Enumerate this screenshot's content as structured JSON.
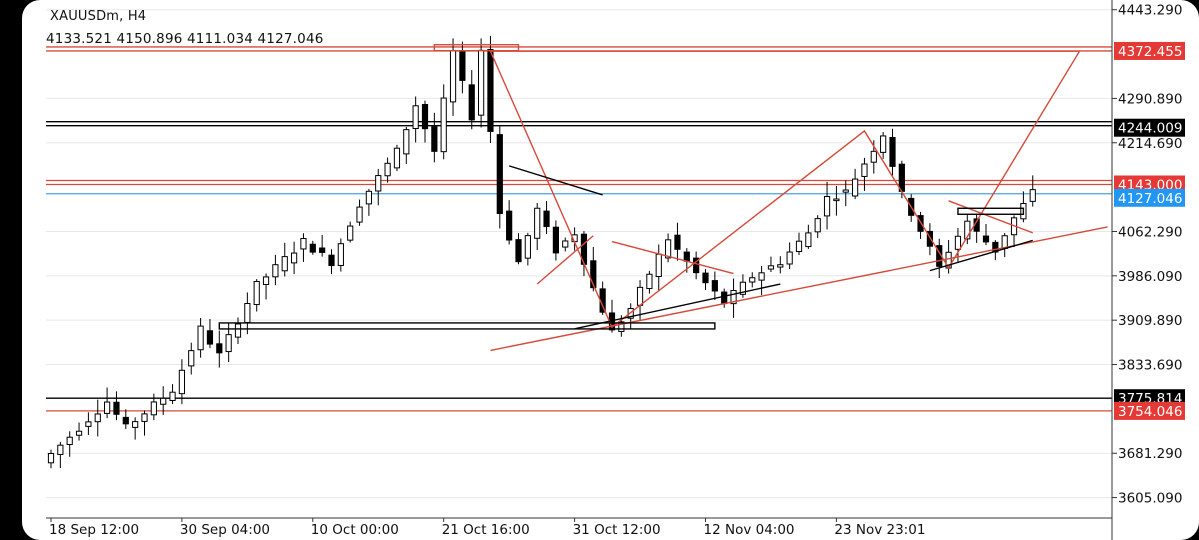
{
  "header": {
    "symbol": "XAUUSDm, H4",
    "ohlc": "4133.521 4150.896 4111.034 4127.046"
  },
  "colors": {
    "background": "#ffffff",
    "bezel": "#000000",
    "candles": "#000000",
    "grid": "#e8e8e8",
    "red_line": "#d64a3a",
    "black_line": "#000000",
    "blue_line": "#4aa3df",
    "price_label_red": "#e53935",
    "price_label_black": "#000000",
    "price_label_blue": "#2196f3"
  },
  "chart_data": {
    "type": "candlestick",
    "symbol": "XAUUSDm",
    "timeframe": "H4",
    "ylim": [
      3570,
      4460
    ],
    "y_ticks": [
      "4443.290",
      "4290.890",
      "4214.690",
      "4062.290",
      "3986.090",
      "3909.890",
      "3833.690",
      "3681.290",
      "3605.090"
    ],
    "x_ticks": [
      "18 Sep 12:00",
      "30 Sep 04:00",
      "10 Oct 00:00",
      "21 Oct 16:00",
      "31 Oct 12:00",
      "12 Nov 04:00",
      "23 Nov 23:01"
    ],
    "x_tick_positions": [
      0,
      14,
      28,
      42,
      56,
      70,
      84
    ],
    "bar_count": 106,
    "price_path": [
      [
        0,
        3665
      ],
      [
        7,
        3770
      ],
      [
        9,
        3725
      ],
      [
        14,
        3790
      ],
      [
        17,
        3895
      ],
      [
        19,
        3850
      ],
      [
        23,
        3970
      ],
      [
        28,
        4045
      ],
      [
        31,
        4010
      ],
      [
        34,
        4110
      ],
      [
        38,
        4200
      ],
      [
        40,
        4280
      ],
      [
        42,
        4200
      ],
      [
        44,
        4370
      ],
      [
        46,
        4260
      ],
      [
        47,
        4375
      ],
      [
        49,
        4095
      ],
      [
        51,
        4010
      ],
      [
        53,
        4100
      ],
      [
        55,
        4030
      ],
      [
        57,
        4060
      ],
      [
        59,
        3965
      ],
      [
        61,
        3890
      ],
      [
        63,
        3930
      ],
      [
        65,
        3990
      ],
      [
        67,
        4050
      ],
      [
        70,
        3990
      ],
      [
        73,
        3940
      ],
      [
        76,
        3985
      ],
      [
        79,
        4010
      ],
      [
        82,
        4060
      ],
      [
        84,
        4120
      ],
      [
        86,
        4130
      ],
      [
        88,
        4180
      ],
      [
        90,
        4230
      ],
      [
        92,
        4125
      ],
      [
        94,
        4065
      ],
      [
        96,
        4000
      ],
      [
        97,
        4030
      ],
      [
        99,
        4080
      ],
      [
        100,
        4060
      ],
      [
        102,
        4030
      ],
      [
        104,
        4085
      ],
      [
        106,
        4130
      ]
    ],
    "horizontal_levels": [
      {
        "price": 4372.455,
        "label": "4372.455",
        "color": "red",
        "double": true
      },
      {
        "price": 4244.009,
        "label": "4244.009",
        "color": "black",
        "double": true
      },
      {
        "price": 4143.0,
        "label": "4143.000",
        "color": "red",
        "double": true
      },
      {
        "price": 4127.046,
        "label": "4127.046",
        "color": "blue",
        "double": false
      },
      {
        "price": 3775.814,
        "label": "3775.814",
        "color": "black",
        "double": false
      },
      {
        "price": 3754.046,
        "label": "3754.046",
        "color": "red",
        "double": false
      }
    ],
    "price_labels": [
      "4372.455",
      "4244.009",
      "4143.000",
      "4127.046",
      "3775.814",
      "3754.046"
    ],
    "drawings": [
      {
        "kind": "zigzag",
        "color": "red",
        "points": [
          [
            47,
            4372
          ],
          [
            60,
            3898
          ],
          [
            87,
            4235
          ],
          [
            96,
            4000
          ],
          [
            110,
            4372
          ],
          [
            47,
            4372
          ]
        ]
      },
      {
        "kind": "line",
        "color": "red",
        "points": [
          [
            52,
            3972
          ],
          [
            58,
            4055
          ]
        ]
      },
      {
        "kind": "line",
        "color": "black",
        "points": [
          [
            49,
            4175
          ],
          [
            59,
            4125
          ]
        ]
      },
      {
        "kind": "line",
        "color": "red",
        "points": [
          [
            60,
            4045
          ],
          [
            73,
            3990
          ]
        ]
      },
      {
        "kind": "line",
        "color": "red",
        "points": [
          [
            47,
            3858
          ],
          [
            113,
            4070
          ]
        ]
      },
      {
        "kind": "line",
        "color": "black",
        "points": [
          [
            56,
            3895
          ],
          [
            78,
            3972
          ]
        ]
      },
      {
        "kind": "line",
        "color": "black",
        "points": [
          [
            94,
            3995
          ],
          [
            105,
            4047
          ]
        ]
      },
      {
        "kind": "line",
        "color": "red",
        "points": [
          [
            96,
            4115
          ],
          [
            105,
            4060
          ]
        ]
      },
      {
        "kind": "rect",
        "color": "black",
        "points": [
          [
            18,
            3900
          ],
          [
            71,
            3900
          ]
        ]
      },
      {
        "kind": "rect",
        "color": "black",
        "points": [
          [
            97,
            4097
          ],
          [
            104,
            4097
          ]
        ]
      },
      {
        "kind": "rect",
        "color": "red",
        "points": [
          [
            41,
            4378
          ],
          [
            50,
            4378
          ]
        ]
      }
    ]
  }
}
